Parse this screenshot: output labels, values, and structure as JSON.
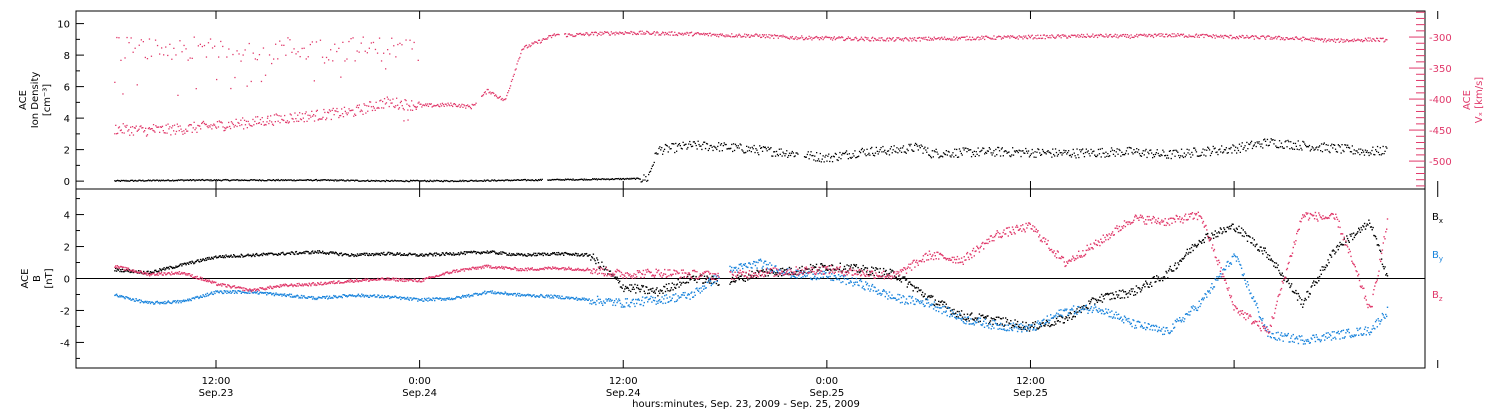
{
  "colors": {
    "black": "#000000",
    "pink": "#e0386a",
    "blue": "#1a84dc"
  },
  "chart_data": [
    {
      "type": "scatter",
      "panel": "top",
      "left_axis": {
        "title_lines": [
          "ACE",
          "Ion Density",
          "[cm⁻³]"
        ],
        "ylim": [
          -0.5,
          10.8
        ],
        "ticks": [
          "0",
          "2",
          "4",
          "6",
          "8",
          "10"
        ]
      },
      "right_axis": {
        "title_lines": [
          "ACE",
          "Vₓ [km/s]"
        ],
        "ylim": [
          -545,
          -258
        ],
        "ticks": [
          "-300",
          "-350",
          "-400",
          "-450",
          "-500"
        ]
      },
      "series": [
        {
          "key": "density",
          "axis": "left",
          "color": "black",
          "hours": [
            6,
            10,
            14,
            18,
            22,
            26,
            30,
            34,
            37.4,
            38,
            40,
            42,
            44,
            46,
            48,
            50,
            52,
            53.5,
            54,
            58,
            62,
            66,
            68,
            70,
            72,
            74,
            76,
            78,
            80,
            81
          ],
          "values": [
            0.05,
            0.1,
            0.1,
            0.1,
            0.05,
            0.05,
            0.1,
            0.15,
            0.2,
            2.0,
            2.3,
            2.2,
            2.0,
            1.8,
            1.5,
            1.9,
            2.0,
            2.2,
            1.8,
            1.9,
            1.8,
            1.9,
            1.7,
            1.9,
            2.1,
            2.5,
            2.3,
            2.1,
            1.9,
            2.0
          ]
        },
        {
          "key": "vx",
          "axis": "right",
          "color": "pink",
          "hours": [
            6,
            8,
            10,
            12,
            14,
            16,
            18,
            20,
            22,
            24,
            26,
            27,
            28,
            29,
            30,
            32,
            33,
            34,
            36,
            38,
            40,
            42,
            44,
            46,
            48,
            50,
            52,
            54,
            56,
            58,
            60,
            62,
            64,
            66,
            68,
            70,
            72,
            74,
            76,
            78,
            80,
            81
          ],
          "values": [
            -447,
            -450,
            -447,
            -442,
            -437,
            -430,
            -425,
            -420,
            -404,
            -410,
            -408,
            -412,
            -385,
            -402,
            -318,
            -295,
            -296,
            -294,
            -292,
            -293,
            -294,
            -296,
            -297,
            -300,
            -301,
            -302,
            -303,
            -302,
            -301,
            -300,
            -299,
            -298,
            -297,
            -298,
            -296,
            -297,
            -299,
            -300,
            -302,
            -305,
            -303,
            -304
          ]
        }
      ]
    },
    {
      "type": "scatter",
      "panel": "bottom",
      "left_axis": {
        "title_lines": [
          "ACE",
          "B",
          "[nT]"
        ],
        "ylim": [
          -5.6,
          5.6
        ],
        "ticks": [
          "-4",
          "-2",
          "0",
          "2",
          "4"
        ]
      },
      "series": [
        {
          "name": "Bx",
          "color": "black",
          "hours": [
            6,
            8,
            10,
            12,
            14,
            16,
            18,
            20,
            22,
            24,
            26,
            28,
            30,
            32,
            34,
            36,
            38,
            40,
            42,
            44,
            46,
            48,
            50,
            52,
            54,
            56,
            58,
            60,
            62,
            64,
            66,
            68,
            70,
            72,
            74,
            76,
            78,
            80,
            81
          ],
          "values": [
            0.6,
            0.4,
            0.9,
            1.4,
            1.5,
            1.6,
            1.7,
            1.5,
            1.6,
            1.5,
            1.6,
            1.7,
            1.5,
            1.6,
            1.5,
            -0.5,
            -0.8,
            0.1,
            -0.2,
            0.4,
            0.5,
            0.8,
            0.6,
            0.3,
            -1.2,
            -2.3,
            -2.6,
            -3.0,
            -2.5,
            -1.2,
            -0.8,
            0.3,
            2.5,
            3.3,
            1.5,
            -1.5,
            2.0,
            3.5,
            0.2
          ]
        },
        {
          "name": "By",
          "color": "blue",
          "hours": [
            6,
            8,
            10,
            12,
            14,
            16,
            18,
            20,
            22,
            24,
            26,
            28,
            30,
            32,
            34,
            36,
            38,
            40,
            42,
            44,
            46,
            48,
            50,
            52,
            54,
            56,
            58,
            60,
            62,
            64,
            66,
            68,
            70,
            72,
            74,
            76,
            78,
            80,
            81
          ],
          "values": [
            -1.0,
            -1.5,
            -1.4,
            -0.8,
            -0.8,
            -1.0,
            -1.2,
            -1.0,
            -1.1,
            -1.3,
            -1.2,
            -0.8,
            -1.0,
            -1.1,
            -1.3,
            -1.5,
            -1.3,
            -1.0,
            0.5,
            1.0,
            0.3,
            0.2,
            -0.3,
            -1.2,
            -1.5,
            -2.5,
            -2.9,
            -3.1,
            -2.0,
            -1.8,
            -2.8,
            -3.3,
            -1.5,
            1.5,
            -3.5,
            -3.8,
            -3.5,
            -3.2,
            -2.0
          ]
        },
        {
          "name": "Bz",
          "color": "pink",
          "hours": [
            6,
            8,
            10,
            12,
            14,
            16,
            18,
            20,
            22,
            24,
            26,
            28,
            30,
            32,
            34,
            36,
            38,
            40,
            42,
            44,
            46,
            48,
            50,
            52,
            54,
            56,
            58,
            60,
            62,
            64,
            66,
            68,
            70,
            72,
            74,
            76,
            78,
            80,
            81
          ],
          "values": [
            0.8,
            0.3,
            0.4,
            -0.3,
            -0.7,
            -0.4,
            -0.3,
            -0.1,
            0.0,
            -0.1,
            0.5,
            0.8,
            0.6,
            0.7,
            0.6,
            0.3,
            0.4,
            0.3,
            0.2,
            0.4,
            0.5,
            0.6,
            0.4,
            0.2,
            1.5,
            1.2,
            2.8,
            3.3,
            1.0,
            2.3,
            3.8,
            3.6,
            4.0,
            -1.8,
            -3.3,
            4.0,
            3.8,
            -2.0,
            3.5
          ]
        }
      ]
    }
  ],
  "x_axis": {
    "hours_range": [
      3.75,
      83.25
    ],
    "tick_hours": [
      12,
      24,
      36,
      48,
      60,
      72,
      84
    ],
    "major_labels": [
      {
        "hour": 12,
        "time": "12:00",
        "date": "Sep.23"
      },
      {
        "hour": 24,
        "time": "0:00",
        "date": "Sep.24"
      },
      {
        "hour": 36,
        "time": "12:00",
        "date": "Sep.24"
      },
      {
        "hour": 48,
        "time": "0:00",
        "date": "Sep.25"
      },
      {
        "hour": 60,
        "time": "12:00",
        "date": "Sep.25"
      }
    ],
    "title": "hours:minutes, Sep. 23, 2009 - Sep. 25, 2009"
  },
  "legend": [
    {
      "name": "Bx",
      "base": "B",
      "sub": "x",
      "color": "black"
    },
    {
      "name": "By",
      "base": "B",
      "sub": "y",
      "color": "blue"
    },
    {
      "name": "Bz",
      "base": "B",
      "sub": "z",
      "color": "pink"
    }
  ]
}
